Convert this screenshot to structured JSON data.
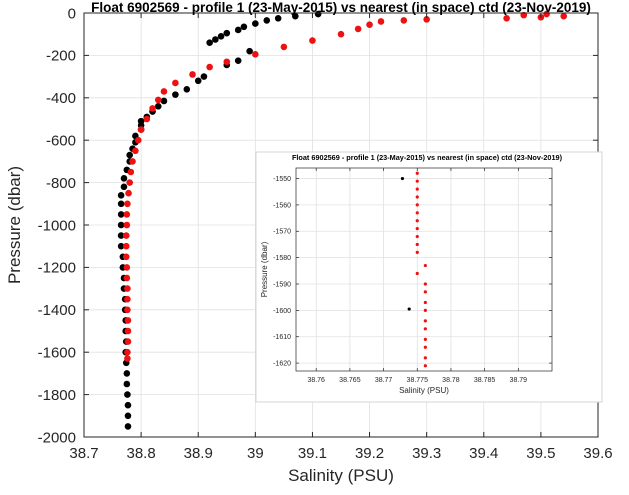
{
  "chart_data": [
    {
      "type": "scatter",
      "title": "Float 6902569 - profile 1 (23-May-2015) vs nearest (in space) ctd (23-Nov-2019)",
      "xlabel": "Salinity (PSU)",
      "ylabel": "Pressure (dbar)",
      "xlim": [
        38.7,
        39.6
      ],
      "ylim": [
        -2000,
        0
      ],
      "x_ticks": [
        38.7,
        38.8,
        38.9,
        39,
        39.1,
        39.2,
        39.3,
        39.4,
        39.5,
        39.6
      ],
      "x_tick_labels": [
        "38.7",
        "38.8",
        "38.9",
        "39",
        "39.1",
        "39.2",
        "39.3",
        "39.4",
        "39.5",
        "39.6"
      ],
      "y_ticks": [
        -2000,
        -1800,
        -1600,
        -1400,
        -1200,
        -1000,
        -800,
        -600,
        -400,
        -200,
        0
      ],
      "y_tick_labels": [
        "-2000",
        "-1800",
        "-1600",
        "-1400",
        "-1200",
        "-1000",
        "-800",
        "-600",
        "-400",
        "-200",
        "0"
      ],
      "grid": true,
      "series": [
        {
          "color": "#000000",
          "points": [
            [
              39.11,
              -5
            ],
            [
              39.07,
              -15
            ],
            [
              39.04,
              -25
            ],
            [
              39.02,
              -35
            ],
            [
              39.0,
              -50
            ],
            [
              38.98,
              -65
            ],
            [
              38.97,
              -80
            ],
            [
              38.95,
              -95
            ],
            [
              38.94,
              -110
            ],
            [
              38.93,
              -125
            ],
            [
              38.92,
              -140
            ],
            [
              38.99,
              -180
            ],
            [
              38.97,
              -225
            ],
            [
              38.95,
              -245
            ],
            [
              38.91,
              -300
            ],
            [
              38.9,
              -320
            ],
            [
              38.88,
              -360
            ],
            [
              38.86,
              -385
            ],
            [
              38.84,
              -415
            ],
            [
              38.83,
              -440
            ],
            [
              38.82,
              -465
            ],
            [
              38.81,
              -490
            ],
            [
              38.8,
              -510
            ],
            [
              38.8,
              -530
            ],
            [
              38.8,
              -550
            ],
            [
              38.79,
              -580
            ],
            [
              38.79,
              -610
            ],
            [
              38.785,
              -640
            ],
            [
              38.78,
              -670
            ],
            [
              38.78,
              -700
            ],
            [
              38.775,
              -740
            ],
            [
              38.77,
              -780
            ],
            [
              38.77,
              -820
            ],
            [
              38.765,
              -860
            ],
            [
              38.765,
              -900
            ],
            [
              38.765,
              -950
            ],
            [
              38.765,
              -1000
            ],
            [
              38.765,
              -1050
            ],
            [
              38.765,
              -1100
            ],
            [
              38.768,
              -1150
            ],
            [
              38.768,
              -1200
            ],
            [
              38.77,
              -1250
            ],
            [
              38.77,
              -1300
            ],
            [
              38.772,
              -1350
            ],
            [
              38.772,
              -1400
            ],
            [
              38.773,
              -1450
            ],
            [
              38.773,
              -1500
            ],
            [
              38.774,
              -1550
            ],
            [
              38.773,
              -1600
            ],
            [
              38.774,
              -1650
            ],
            [
              38.775,
              -1700
            ],
            [
              38.775,
              -1750
            ],
            [
              38.776,
              -1800
            ],
            [
              38.777,
              -1850
            ],
            [
              38.777,
              -1900
            ],
            [
              38.777,
              -1950
            ]
          ]
        },
        {
          "color": "#ee1111",
          "points": [
            [
              39.51,
              -5
            ],
            [
              39.47,
              -10
            ],
            [
              39.54,
              -15
            ],
            [
              39.5,
              -20
            ],
            [
              39.44,
              -25
            ],
            [
              39.3,
              -30
            ],
            [
              39.26,
              -35
            ],
            [
              39.22,
              -40
            ],
            [
              39.2,
              -55
            ],
            [
              39.18,
              -75
            ],
            [
              39.15,
              -100
            ],
            [
              39.1,
              -130
            ],
            [
              39.05,
              -160
            ],
            [
              39.0,
              -195
            ],
            [
              38.95,
              -230
            ],
            [
              38.92,
              -255
            ],
            [
              38.89,
              -290
            ],
            [
              38.86,
              -330
            ],
            [
              38.84,
              -370
            ],
            [
              38.83,
              -410
            ],
            [
              38.82,
              -450
            ],
            [
              38.81,
              -500
            ],
            [
              38.8,
              -550
            ],
            [
              38.795,
              -600
            ],
            [
              38.79,
              -650
            ],
            [
              38.785,
              -700
            ],
            [
              38.782,
              -750
            ],
            [
              38.78,
              -800
            ],
            [
              38.778,
              -850
            ],
            [
              38.776,
              -900
            ],
            [
              38.775,
              -950
            ],
            [
              38.775,
              -1000
            ],
            [
              38.774,
              -1050
            ],
            [
              38.774,
              -1100
            ],
            [
              38.774,
              -1150
            ],
            [
              38.775,
              -1200
            ],
            [
              38.775,
              -1250
            ],
            [
              38.776,
              -1300
            ],
            [
              38.776,
              -1350
            ],
            [
              38.776,
              -1400
            ],
            [
              38.777,
              -1450
            ],
            [
              38.777,
              -1500
            ],
            [
              38.777,
              -1550
            ],
            [
              38.776,
              -1600
            ],
            [
              38.776,
              -1630
            ]
          ]
        }
      ]
    },
    {
      "type": "scatter",
      "title": "Float 6902569 - profile 1 (23-May-2015) vs nearest (in space) ctd (23-Nov-2019)",
      "xlabel": "Salinity (PSU)",
      "ylabel": "Pressure (dbar)",
      "xlim": [
        38.757,
        38.795
      ],
      "ylim": [
        -1623,
        -1546
      ],
      "x_ticks": [
        38.76,
        38.765,
        38.77,
        38.775,
        38.78,
        38.785,
        38.79
      ],
      "x_tick_labels": [
        "38.76",
        "38.765",
        "38.77",
        "38.775",
        "38.78",
        "38.785",
        "38.79"
      ],
      "y_ticks": [
        -1620,
        -1610,
        -1600,
        -1590,
        -1580,
        -1570,
        -1560,
        -1550
      ],
      "y_tick_labels": [
        "-1620",
        "-1610",
        "-1600",
        "-1590",
        "-1580",
        "-1570",
        "-1560",
        "-1550"
      ],
      "grid": true,
      "series": [
        {
          "color": "#000000",
          "points": [
            [
              38.7728,
              -1550
            ],
            [
              38.7738,
              -1599.5
            ]
          ]
        },
        {
          "color": "#ee1111",
          "points": [
            [
              38.775,
              -1548
            ],
            [
              38.775,
              -1551
            ],
            [
              38.775,
              -1554
            ],
            [
              38.775,
              -1557
            ],
            [
              38.775,
              -1560
            ],
            [
              38.775,
              -1563
            ],
            [
              38.775,
              -1566
            ],
            [
              38.775,
              -1569
            ],
            [
              38.775,
              -1572
            ],
            [
              38.775,
              -1575
            ],
            [
              38.775,
              -1578
            ],
            [
              38.7762,
              -1583
            ],
            [
              38.775,
              -1586
            ],
            [
              38.7762,
              -1590
            ],
            [
              38.7762,
              -1593
            ],
            [
              38.7762,
              -1597
            ],
            [
              38.7762,
              -1600
            ],
            [
              38.7762,
              -1604
            ],
            [
              38.7762,
              -1607
            ],
            [
              38.7762,
              -1611
            ],
            [
              38.7762,
              -1614
            ],
            [
              38.7762,
              -1618
            ],
            [
              38.7762,
              -1621
            ]
          ]
        }
      ]
    }
  ]
}
